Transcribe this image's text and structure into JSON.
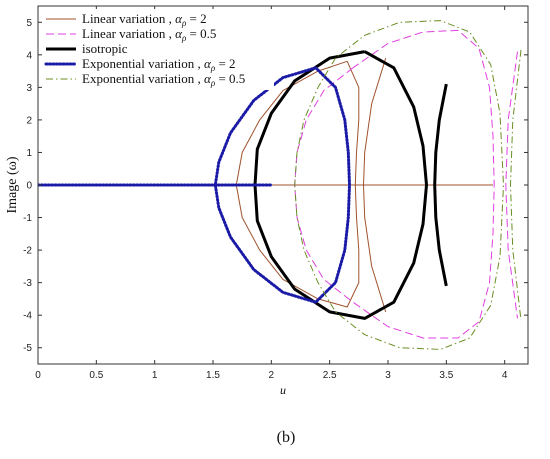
{
  "caption": "(b)",
  "chart_data": {
    "type": "line",
    "title": "",
    "xlabel": "u",
    "ylabel": "Image (ω)",
    "xlim": [
      0,
      4.2
    ],
    "ylim": [
      -5.5,
      5.5
    ],
    "xticks": [
      0,
      0.5,
      1,
      1.5,
      2,
      2.5,
      3,
      3.5,
      4
    ],
    "xtick_labels": [
      "0",
      "0.5",
      "1",
      "1.5",
      "2",
      "2.5",
      "3",
      "3.5",
      "4"
    ],
    "yticks": [
      -5,
      -4,
      -3,
      -2,
      -1,
      0,
      1,
      2,
      3,
      4,
      5
    ],
    "ytick_labels": [
      "-5",
      "-4",
      "-3",
      "-2",
      "-1",
      "0",
      "1",
      "2",
      "3",
      "4",
      "5"
    ],
    "grid": false,
    "legend_position": "top-left",
    "series": [
      {
        "name": "Linear variation , αρ = 2",
        "label_main": "Linear variation , ",
        "label_alpha": "α",
        "label_sub": "ρ",
        "label_value": " = 2",
        "color": "#a0522d",
        "style": "solid",
        "width": 1,
        "segments": [
          [
            [
              2.65,
              3.8
            ],
            [
              2.4,
              3.5
            ],
            [
              2.1,
              2.9
            ],
            [
              1.9,
              2.0
            ],
            [
              1.75,
              1.0
            ],
            [
              1.7,
              0
            ],
            [
              1.75,
              -1.0
            ],
            [
              1.9,
              -2.0
            ],
            [
              2.1,
              -2.9
            ],
            [
              2.4,
              -3.5
            ],
            [
              2.65,
              -3.75
            ],
            [
              2.75,
              -3.0
            ],
            [
              2.75,
              -2.0
            ],
            [
              2.73,
              -1.0
            ],
            [
              2.72,
              0
            ],
            [
              2.73,
              1.0
            ],
            [
              2.75,
              2.0
            ],
            [
              2.75,
              3.0
            ],
            [
              2.65,
              3.8
            ]
          ],
          [
            [
              2.98,
              3.9
            ],
            [
              2.86,
              2.5
            ],
            [
              2.8,
              1.0
            ],
            [
              2.79,
              0
            ],
            [
              2.8,
              -1.0
            ],
            [
              2.86,
              -2.5
            ],
            [
              2.98,
              -3.9
            ]
          ],
          [
            [
              0,
              0
            ],
            [
              3.9,
              0
            ]
          ]
        ]
      },
      {
        "name": "Linear variation , αρ = 0.5",
        "label_main": "Linear variation , ",
        "label_alpha": "α",
        "label_sub": "ρ",
        "label_value": " = 0.5",
        "color": "#e040e0",
        "style": "dashed",
        "width": 1,
        "segments": [
          [
            [
              2.7,
              3.6
            ],
            [
              2.45,
              2.9
            ],
            [
              2.3,
              2.0
            ],
            [
              2.22,
              1.0
            ],
            [
              2.2,
              0
            ],
            [
              2.22,
              -1.0
            ],
            [
              2.3,
              -2.0
            ],
            [
              2.45,
              -2.9
            ],
            [
              2.7,
              -3.6
            ],
            [
              3.0,
              -4.35
            ],
            [
              3.3,
              -4.7
            ],
            [
              3.6,
              -4.7
            ],
            [
              3.78,
              -4.2
            ],
            [
              3.87,
              -3.0
            ],
            [
              3.9,
              -1.5
            ],
            [
              3.91,
              0
            ],
            [
              3.9,
              1.5
            ],
            [
              3.87,
              3.0
            ],
            [
              3.78,
              4.2
            ],
            [
              3.6,
              4.75
            ],
            [
              3.3,
              4.7
            ],
            [
              3.0,
              4.35
            ],
            [
              2.7,
              3.6
            ]
          ],
          [
            [
              4.11,
              4.1
            ],
            [
              4.03,
              2.0
            ],
            [
              4.01,
              0
            ],
            [
              4.03,
              -2.0
            ],
            [
              4.11,
              -4.1
            ]
          ]
        ]
      },
      {
        "name": "isotropic",
        "label_main": "isotropic",
        "label_alpha": "",
        "label_sub": "",
        "label_value": "",
        "color": "#000000",
        "style": "solid",
        "width": 3,
        "segments": [
          [
            [
              2.8,
              4.1
            ],
            [
              2.5,
              3.9
            ],
            [
              2.2,
              3.2
            ],
            [
              2.0,
              2.2
            ],
            [
              1.88,
              1.1
            ],
            [
              1.86,
              0
            ],
            [
              1.88,
              -1.1
            ],
            [
              2.0,
              -2.2
            ],
            [
              2.2,
              -3.2
            ],
            [
              2.5,
              -3.9
            ],
            [
              2.8,
              -4.1
            ],
            [
              3.05,
              -3.6
            ],
            [
              3.22,
              -2.4
            ],
            [
              3.3,
              -1.2
            ],
            [
              3.33,
              0
            ],
            [
              3.3,
              1.2
            ],
            [
              3.22,
              2.4
            ],
            [
              3.05,
              3.6
            ],
            [
              2.8,
              4.1
            ]
          ],
          [
            [
              3.5,
              3.1
            ],
            [
              3.44,
              2.0
            ],
            [
              3.41,
              1.0
            ],
            [
              3.4,
              0
            ],
            [
              3.41,
              -1.0
            ],
            [
              3.44,
              -2.0
            ],
            [
              3.5,
              -3.1
            ]
          ]
        ]
      },
      {
        "name": "Exponential variation , αρ = 2",
        "label_main": "Exponential variation , ",
        "label_alpha": "α",
        "label_sub": "ρ",
        "label_value": " = 2",
        "color": "#1a1aa6",
        "style": "dotted",
        "width": 3,
        "segments": [
          [
            [
              2.38,
              3.6
            ],
            [
              2.1,
              3.3
            ],
            [
              1.85,
              2.6
            ],
            [
              1.65,
              1.6
            ],
            [
              1.55,
              0.7
            ],
            [
              1.52,
              0
            ],
            [
              1.55,
              -0.7
            ],
            [
              1.65,
              -1.6
            ],
            [
              1.85,
              -2.6
            ],
            [
              2.1,
              -3.3
            ],
            [
              2.38,
              -3.6
            ],
            [
              2.55,
              -3.0
            ],
            [
              2.63,
              -2.0
            ],
            [
              2.66,
              -1.0
            ],
            [
              2.67,
              0
            ],
            [
              2.66,
              1.0
            ],
            [
              2.63,
              2.0
            ],
            [
              2.55,
              3.0
            ],
            [
              2.38,
              3.6
            ]
          ],
          [
            [
              0,
              0
            ],
            [
              2.0,
              0
            ]
          ]
        ]
      },
      {
        "name": "Exponential variation , αρ = 0.5",
        "label_main": "Exponential variation , ",
        "label_alpha": "α",
        "label_sub": "ρ",
        "label_value": " = 0.5",
        "color": "#6b8e23",
        "style": "dashdot",
        "width": 1,
        "segments": [
          [
            [
              2.55,
              3.9
            ],
            [
              2.4,
              3.0
            ],
            [
              2.28,
              2.0
            ],
            [
              2.22,
              1.0
            ],
            [
              2.2,
              0
            ],
            [
              2.22,
              -1.0
            ],
            [
              2.28,
              -2.0
            ],
            [
              2.4,
              -3.0
            ],
            [
              2.55,
              -3.9
            ],
            [
              2.8,
              -4.6
            ],
            [
              3.1,
              -5.0
            ],
            [
              3.45,
              -5.05
            ],
            [
              3.7,
              -4.7
            ],
            [
              3.88,
              -3.7
            ],
            [
              3.96,
              -2.2
            ],
            [
              3.99,
              0
            ],
            [
              3.96,
              2.2
            ],
            [
              3.88,
              3.7
            ],
            [
              3.7,
              4.7
            ],
            [
              3.45,
              5.05
            ],
            [
              3.1,
              5.0
            ],
            [
              2.8,
              4.6
            ],
            [
              2.55,
              3.9
            ]
          ],
          [
            [
              4.14,
              4.15
            ],
            [
              4.07,
              2.0
            ],
            [
              4.05,
              0
            ],
            [
              4.07,
              -2.0
            ],
            [
              4.14,
              -4.15
            ]
          ]
        ]
      }
    ]
  }
}
